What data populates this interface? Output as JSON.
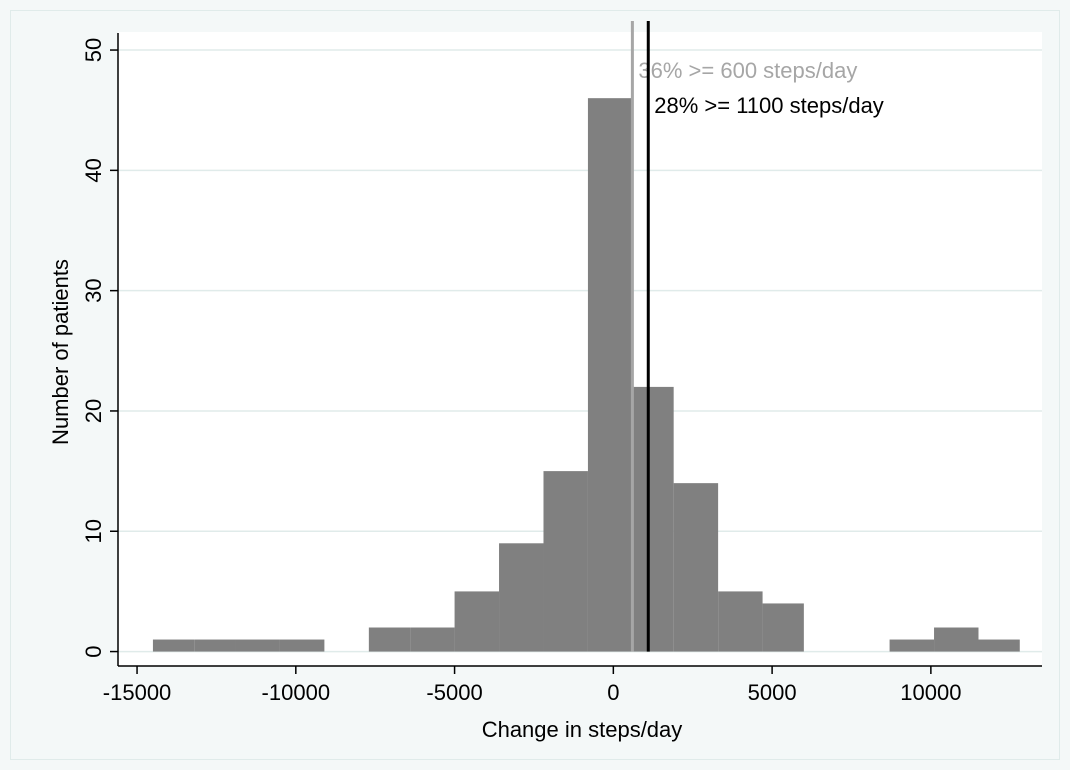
{
  "colors": {
    "outer_background": "#f4f8f8",
    "plot_background": "#ffffff",
    "frame": "#e0ebea",
    "grid": "#e0ebea",
    "bar_fill": "#808080",
    "axis": "#000000",
    "ref_line_600": "#a6a6a6",
    "ref_line_1100": "#000000"
  },
  "chart_data": {
    "type": "bar",
    "title": "",
    "xlabel": "Change in steps/day",
    "ylabel": "Number of patients",
    "xlim": [
      -15600,
      13500
    ],
    "ylim": [
      -1.2,
      51.5
    ],
    "xticks": [
      -15000,
      -10000,
      -5000,
      0,
      5000,
      10000
    ],
    "xtick_labels": [
      "-15000",
      "-10000",
      "-5000",
      "0",
      "5000",
      "10000"
    ],
    "yticks": [
      0,
      10,
      20,
      30,
      40,
      50
    ],
    "ytick_labels": [
      "0",
      "10",
      "20",
      "30",
      "40",
      "50"
    ],
    "grid": "horizontal",
    "bins": [
      {
        "x0": -14500,
        "x1": -13200,
        "count": 1
      },
      {
        "x0": -13200,
        "x1": -11900,
        "count": 1
      },
      {
        "x0": -11900,
        "x1": -10500,
        "count": 1
      },
      {
        "x0": -10500,
        "x1": -9100,
        "count": 1
      },
      {
        "x0": -7700,
        "x1": -6400,
        "count": 2
      },
      {
        "x0": -6400,
        "x1": -5000,
        "count": 2
      },
      {
        "x0": -5000,
        "x1": -3600,
        "count": 5
      },
      {
        "x0": -3600,
        "x1": -2200,
        "count": 9
      },
      {
        "x0": -2200,
        "x1": -800,
        "count": 15
      },
      {
        "x0": -800,
        "x1": 600,
        "count": 46
      },
      {
        "x0": 600,
        "x1": 1900,
        "count": 22
      },
      {
        "x0": 1900,
        "x1": 3300,
        "count": 14
      },
      {
        "x0": 3300,
        "x1": 4700,
        "count": 5
      },
      {
        "x0": 4700,
        "x1": 6000,
        "count": 4
      },
      {
        "x0": 8700,
        "x1": 10100,
        "count": 1
      },
      {
        "x0": 10100,
        "x1": 11500,
        "count": 2
      },
      {
        "x0": 11500,
        "x1": 12800,
        "count": 1
      }
    ],
    "reference_lines": [
      {
        "x": 600,
        "label": "36% >= 600 steps/day",
        "color": "#a6a6a6"
      },
      {
        "x": 1100,
        "label": "28% >= 1100 steps/day",
        "color": "#000000"
      }
    ]
  }
}
